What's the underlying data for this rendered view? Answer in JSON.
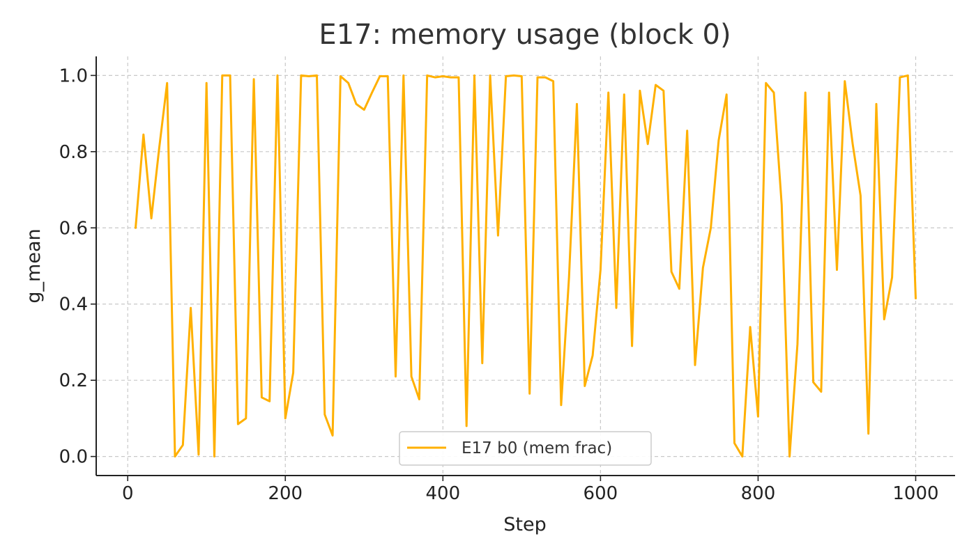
{
  "chart_data": {
    "type": "line",
    "title": "E17: memory usage (block 0)",
    "xlabel": "Step",
    "ylabel": "g_mean",
    "xlim": [
      -40,
      1050
    ],
    "ylim": [
      -0.05,
      1.05
    ],
    "xticks": [
      0,
      200,
      400,
      600,
      800,
      1000
    ],
    "yticks": [
      0.0,
      0.2,
      0.4,
      0.6,
      0.8,
      1.0
    ],
    "xtick_labels": [
      "0",
      "200",
      "400",
      "600",
      "800",
      "1000"
    ],
    "ytick_labels": [
      "0.0",
      "0.2",
      "0.4",
      "0.6",
      "0.8",
      "1.0"
    ],
    "grid": true,
    "legend_position": "lower-center",
    "series": [
      {
        "name": "E17 b0 (mem frac)",
        "color": "#FFB000",
        "x": [
          10,
          20,
          30,
          40,
          50,
          60,
          70,
          80,
          90,
          100,
          110,
          120,
          130,
          140,
          150,
          160,
          170,
          180,
          190,
          200,
          210,
          220,
          230,
          240,
          250,
          260,
          270,
          280,
          290,
          300,
          310,
          320,
          330,
          340,
          350,
          360,
          370,
          380,
          390,
          400,
          410,
          420,
          430,
          440,
          450,
          460,
          470,
          480,
          490,
          500,
          510,
          520,
          530,
          540,
          550,
          560,
          570,
          580,
          590,
          600,
          610,
          620,
          630,
          640,
          650,
          660,
          670,
          680,
          690,
          700,
          710,
          720,
          730,
          740,
          750,
          760,
          770,
          780,
          790,
          800,
          810,
          820,
          830,
          840,
          850,
          860,
          870,
          880,
          890,
          900,
          910,
          920,
          930,
          940,
          950,
          960,
          970,
          980,
          990,
          1000
        ],
        "y": [
          0.6,
          0.845,
          0.625,
          0.81,
          0.98,
          0.0,
          0.03,
          0.39,
          0.005,
          0.98,
          0.0,
          1.0,
          1.0,
          0.085,
          0.1,
          0.99,
          0.155,
          0.145,
          1.0,
          0.1,
          0.22,
          1.0,
          0.998,
          1.0,
          0.11,
          0.055,
          0.998,
          0.98,
          0.925,
          0.91,
          0.955,
          0.998,
          0.998,
          0.21,
          1.0,
          0.21,
          0.15,
          1.0,
          0.995,
          0.998,
          0.995,
          0.995,
          0.08,
          1.0,
          0.245,
          1.0,
          0.58,
          0.998,
          1.0,
          0.998,
          0.165,
          0.995,
          0.995,
          0.985,
          0.135,
          0.47,
          0.925,
          0.185,
          0.265,
          0.49,
          0.955,
          0.39,
          0.95,
          0.29,
          0.96,
          0.82,
          0.975,
          0.96,
          0.485,
          0.44,
          0.855,
          0.24,
          0.495,
          0.6,
          0.83,
          0.95,
          0.035,
          0.0,
          0.34,
          0.105,
          0.98,
          0.955,
          0.66,
          0.0,
          0.295,
          0.955,
          0.195,
          0.17,
          0.955,
          0.49,
          0.985,
          0.82,
          0.685,
          0.06,
          0.925,
          0.36,
          0.47,
          0.995,
          1.0,
          0.415
        ]
      }
    ]
  }
}
